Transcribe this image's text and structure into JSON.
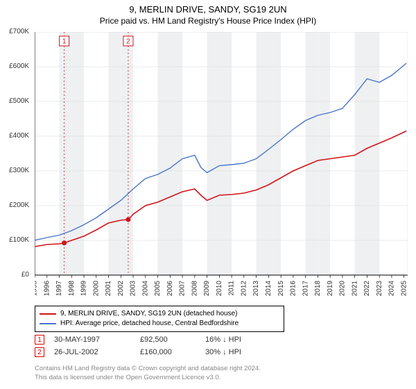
{
  "title_line1": "9, MERLIN DRIVE, SANDY, SG19 2UN",
  "title_line2": "Price paid vs. HM Land Registry's House Price Index (HPI)",
  "chart": {
    "type": "line",
    "x_years": [
      1995,
      1996,
      1997,
      1998,
      1999,
      2000,
      2001,
      2002,
      2003,
      2004,
      2005,
      2006,
      2007,
      2008,
      2009,
      2010,
      2011,
      2012,
      2013,
      2014,
      2015,
      2016,
      2017,
      2018,
      2019,
      2020,
      2021,
      2022,
      2023,
      2024,
      2025
    ],
    "ylim": [
      0,
      700000
    ],
    "ytick_step": 100000,
    "y_tick_labels": [
      "£0",
      "£100K",
      "£200K",
      "£300K",
      "£400K",
      "£500K",
      "£600K",
      "£700K"
    ],
    "background_color": "#ffffff",
    "stripe_color": "#eef0f2",
    "grid_color": "#d7d7d7",
    "axis_color": "#000000",
    "series": [
      {
        "name": "price_paid",
        "color": "#d1141a",
        "line_width": 1.6,
        "points_year": [
          1995.0,
          1996.0,
          1997.0,
          1997.4,
          1998.0,
          1999.0,
          2000.0,
          2001.0,
          2002.0,
          2002.6,
          2003.0,
          2004.0,
          2005.0,
          2006.0,
          2007.0,
          2008.0,
          2008.5,
          2009.0,
          2010.0,
          2011.0,
          2012.0,
          2013.0,
          2014.0,
          2015.0,
          2016.0,
          2017.0,
          2018.0,
          2019.0,
          2020.0,
          2021.0,
          2022.0,
          2023.0,
          2024.0,
          2025.2
        ],
        "points_value": [
          82000,
          88000,
          90000,
          92500,
          100000,
          112000,
          130000,
          150000,
          158000,
          160000,
          175000,
          200000,
          210000,
          225000,
          240000,
          248000,
          230000,
          215000,
          230000,
          232000,
          236000,
          245000,
          260000,
          280000,
          300000,
          315000,
          330000,
          335000,
          340000,
          345000,
          365000,
          380000,
          395000,
          415000
        ]
      },
      {
        "name": "hpi",
        "color": "#4a74c9",
        "line_width": 1.4,
        "points_year": [
          1995.0,
          1996.0,
          1997.0,
          1998.0,
          1999.0,
          2000.0,
          2001.0,
          2002.0,
          2003.0,
          2004.0,
          2005.0,
          2006.0,
          2007.0,
          2008.0,
          2008.5,
          2009.0,
          2010.0,
          2011.0,
          2012.0,
          2013.0,
          2014.0,
          2015.0,
          2016.0,
          2017.0,
          2018.0,
          2019.0,
          2020.0,
          2021.0,
          2022.0,
          2023.0,
          2024.0,
          2025.2
        ],
        "points_value": [
          100000,
          108000,
          115000,
          128000,
          145000,
          165000,
          190000,
          215000,
          248000,
          278000,
          290000,
          308000,
          335000,
          345000,
          310000,
          295000,
          315000,
          318000,
          322000,
          335000,
          362000,
          390000,
          420000,
          445000,
          460000,
          468000,
          480000,
          520000,
          565000,
          555000,
          575000,
          610000
        ]
      }
    ],
    "sale_markers": [
      {
        "label": "1",
        "year": 1997.4,
        "value": 92500
      },
      {
        "label": "2",
        "year": 2002.6,
        "value": 160000
      }
    ],
    "marker_box_color": "#d1141a",
    "marker_dash_color": "#d1141a",
    "sale_dot_color": "#d1141a"
  },
  "legend": {
    "items": [
      {
        "color": "#d1141a",
        "text": "9, MERLIN DRIVE, SANDY, SG19 2UN (detached house)"
      },
      {
        "color": "#4a74c9",
        "text": "HPI: Average price, detached house, Central Bedfordshire"
      }
    ]
  },
  "sales": [
    {
      "marker": "1",
      "date": "30-MAY-1997",
      "price": "£92,500",
      "pct": "16% ↓ HPI"
    },
    {
      "marker": "2",
      "date": "26-JUL-2002",
      "price": "£160,000",
      "pct": "30% ↓ HPI"
    }
  ],
  "attribution_line1": "Contains HM Land Registry data © Crown copyright and database right 2024.",
  "attribution_line2": "This data is licensed under the Open Government Licence v3.0."
}
